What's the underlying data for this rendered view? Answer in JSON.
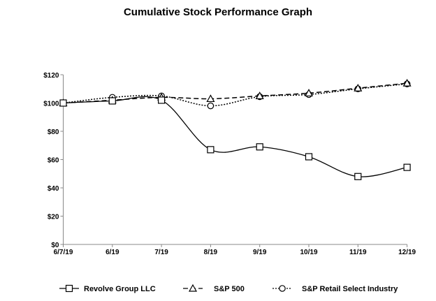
{
  "chart_data": {
    "type": "line",
    "title": "Cumulative Stock Performance Graph",
    "xlabel": "",
    "ylabel": "",
    "categories": [
      "6/7/19",
      "6/19",
      "7/19",
      "8/19",
      "9/19",
      "10/19",
      "11/19",
      "12/19"
    ],
    "yticks": [
      "$0",
      "$20",
      "$40",
      "$60",
      "$80",
      "$100",
      "$120"
    ],
    "ylim": [
      0,
      120
    ],
    "grid": false,
    "legend": "bottom",
    "series": [
      {
        "name": "Revolve Group LLC",
        "marker": "square",
        "dash": "solid",
        "color": "#000000",
        "values": [
          100,
          101.5,
          102,
          67,
          69,
          62,
          48,
          54.5
        ]
      },
      {
        "name": "S&P 500",
        "marker": "triangle",
        "dash": "dashed",
        "color": "#000000",
        "values": [
          100,
          102,
          104,
          103,
          105,
          107,
          110.5,
          114
        ]
      },
      {
        "name": "S&P Retail Select Industry",
        "marker": "circle",
        "dash": "dotted",
        "color": "#000000",
        "values": [
          100,
          104,
          105,
          98,
          104.5,
          106,
          110,
          113.5
        ]
      }
    ]
  }
}
